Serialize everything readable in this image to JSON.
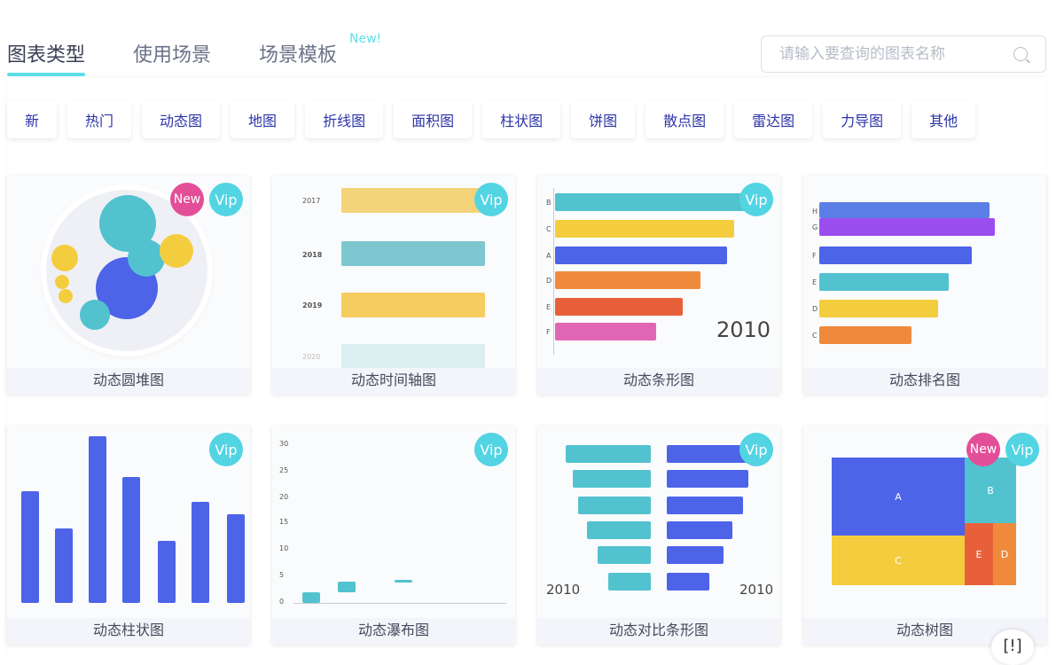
{
  "tabs": [
    {
      "label": "图表类型",
      "active": true
    },
    {
      "label": "使用场景"
    },
    {
      "label": "场景模板",
      "tag": "New!"
    }
  ],
  "search": {
    "placeholder": "请输入要查询的图表名称",
    "icon": "search-icon"
  },
  "filters": [
    "新",
    "热门",
    "动态图",
    "地图",
    "折线图",
    "面积图",
    "柱状图",
    "饼图",
    "散点图",
    "雷达图",
    "力导图",
    "其他"
  ],
  "badges": {
    "new": "New",
    "vip": "Vip"
  },
  "colors": {
    "accent": "#5ee0e8",
    "vip": "#52d4e3",
    "new": "#e24f98",
    "filter_text": "#2b34a8"
  },
  "cards": [
    {
      "title": "动态圆堆图",
      "new": true,
      "vip": true
    },
    {
      "title": "动态时间轴图",
      "vip": true,
      "years": [
        "2017",
        "2018",
        "2019",
        "2020"
      ]
    },
    {
      "title": "动态条形图",
      "vip": true,
      "labels": [
        "B",
        "C",
        "A",
        "D",
        "E",
        "F"
      ],
      "year": "2010"
    },
    {
      "title": "动态排名图",
      "labels": [
        "H",
        "G",
        "F",
        "E",
        "D",
        "C"
      ]
    },
    {
      "title": "动态柱状图",
      "vip": true
    },
    {
      "title": "动态瀑布图",
      "vip": true,
      "yticks": [
        "30",
        "25",
        "20",
        "15",
        "10",
        "5",
        "0"
      ]
    },
    {
      "title": "动态对比条形图",
      "vip": true,
      "year_left": "2010",
      "year_right": "2010"
    },
    {
      "title": "动态树图",
      "new": true,
      "vip": true,
      "labels": [
        "A",
        "B",
        "C",
        "E",
        "D"
      ]
    }
  ],
  "help": {
    "icon": "feedback-icon",
    "label": "[!]"
  }
}
